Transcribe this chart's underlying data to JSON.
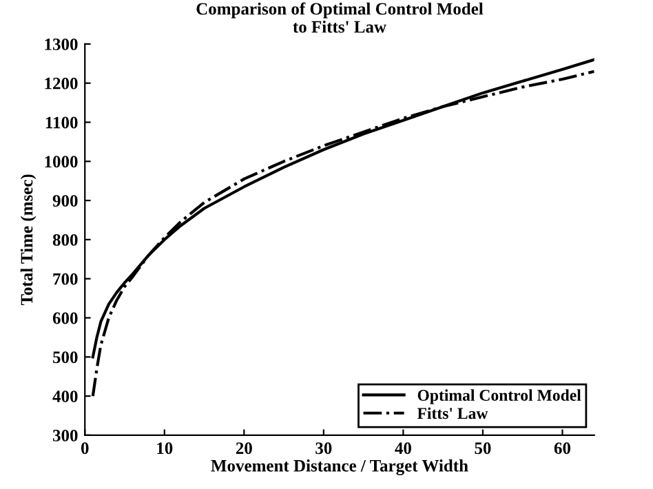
{
  "chart_data": {
    "type": "line",
    "title": "Comparison of Optimal Control Model\nto Fitts' Law",
    "xlabel": "Movement Distance / Target Width",
    "ylabel": "Total Time (msec)",
    "xlim": [
      0,
      64
    ],
    "xticks": [
      0,
      10,
      20,
      30,
      40,
      50,
      60
    ],
    "ylim": [
      300,
      1300
    ],
    "yticks": [
      300,
      400,
      500,
      600,
      700,
      800,
      900,
      1000,
      1100,
      1200,
      1300
    ],
    "grid": false,
    "legend": "bottom right",
    "series": [
      {
        "name": "Optimal Control Model",
        "color": "#000000",
        "line_style": "solid",
        "x": [
          1,
          1.5,
          2,
          3,
          4,
          5,
          6,
          8,
          10,
          12,
          15,
          20,
          25,
          30,
          35,
          40,
          45,
          50,
          55,
          60,
          64
        ],
        "values": [
          500,
          550,
          590,
          635,
          665,
          690,
          712,
          760,
          800,
          835,
          880,
          935,
          985,
          1030,
          1070,
          1105,
          1140,
          1175,
          1205,
          1235,
          1260
        ]
      },
      {
        "name": "Fitts' Law",
        "color": "#000000",
        "line_style": "dashdot",
        "x": [
          1,
          1.5,
          2,
          3,
          4,
          5,
          6,
          8,
          10,
          12,
          15,
          20,
          25,
          30,
          35,
          40,
          45,
          50,
          55,
          60,
          64
        ],
        "values": [
          400,
          470,
          530,
          600,
          645,
          680,
          705,
          760,
          805,
          845,
          895,
          955,
          1000,
          1040,
          1075,
          1110,
          1140,
          1165,
          1190,
          1210,
          1230
        ]
      }
    ]
  }
}
